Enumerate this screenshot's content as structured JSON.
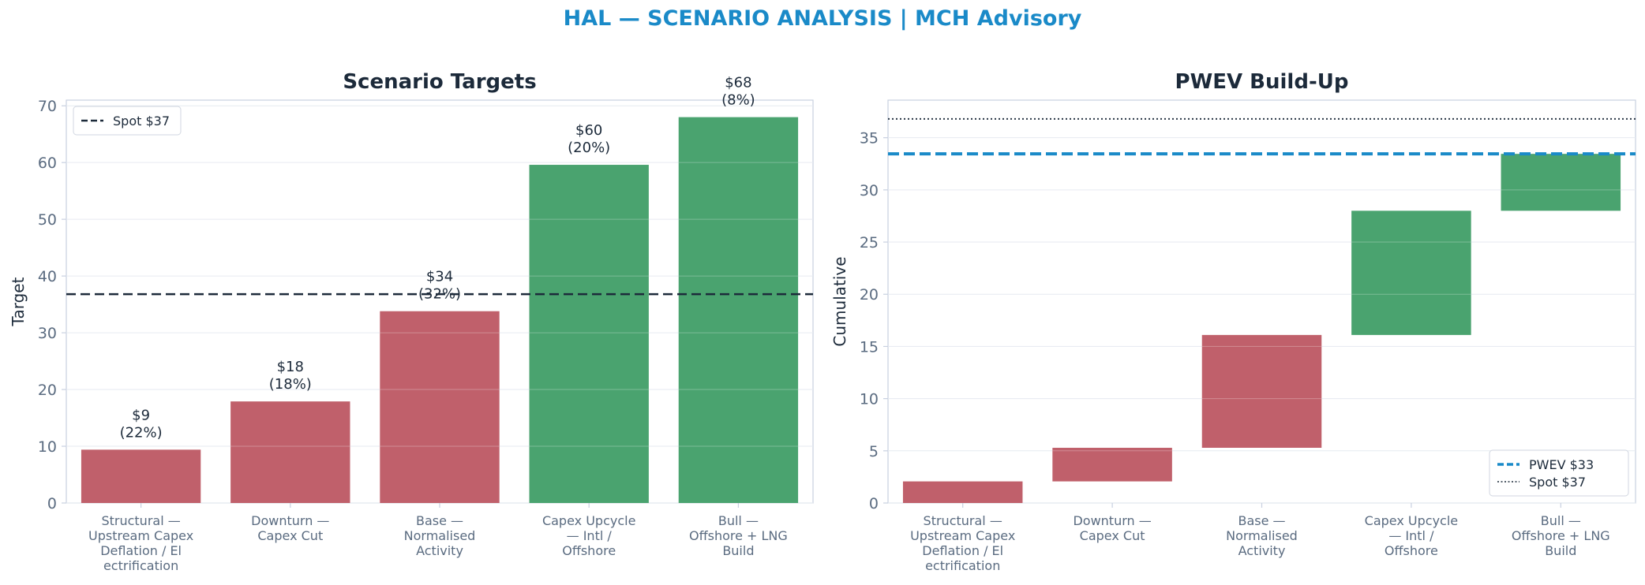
{
  "title": "HAL — SCENARIO ANALYSIS | MCH Advisory",
  "colors": {
    "bear": "#c0606b",
    "bull": "#4aa36f",
    "accent": "#1a8ac8",
    "spot": "#1c2a3a",
    "text": "#1c2a3a",
    "axis": "#c8d0e0"
  },
  "chart_data": [
    {
      "type": "bar",
      "title": "Scenario Targets",
      "xlabel": "",
      "ylabel": "Target",
      "ylim": [
        0,
        71
      ],
      "yticks": [
        0,
        10,
        20,
        30,
        40,
        50,
        60,
        70
      ],
      "categories": [
        [
          "Structural —",
          "Upstream Capex",
          "Deflation / El",
          "ectrification"
        ],
        [
          "Downturn —",
          "Capex Cut"
        ],
        [
          "Base —",
          "Normalised",
          "Activity"
        ],
        [
          "Capex Upcycle",
          "— Intl /",
          "Offshore"
        ],
        [
          "Bull —",
          "Offshore + LNG",
          "Build"
        ]
      ],
      "values": [
        9.4,
        17.9,
        33.8,
        59.6,
        68.0
      ],
      "bar_colors": [
        "bear",
        "bear",
        "bear",
        "bull",
        "bull"
      ],
      "data_labels": [
        [
          "$9",
          "(22%)"
        ],
        [
          "$18",
          "(18%)"
        ],
        [
          "$34",
          "(32%)"
        ],
        [
          "$60",
          "(20%)"
        ],
        [
          "$68",
          "(8%)"
        ]
      ],
      "reference_lines": [
        {
          "name": "Spot $37",
          "value": 36.8,
          "style": "dashed",
          "color": "spot"
        }
      ],
      "legend": {
        "position": "top-left",
        "entries": [
          "Spot $37"
        ]
      },
      "grid": true
    },
    {
      "type": "bar",
      "subtype": "waterfall",
      "title": "PWEV Build-Up",
      "xlabel": "",
      "ylabel": "Cumulative",
      "ylim": [
        0,
        38.6
      ],
      "yticks": [
        0,
        5,
        10,
        15,
        20,
        25,
        30,
        35
      ],
      "categories": [
        [
          "Structural —",
          "Upstream Capex",
          "Deflation / El",
          "ectrification"
        ],
        [
          "Downturn —",
          "Capex Cut"
        ],
        [
          "Base —",
          "Normalised",
          "Activity"
        ],
        [
          "Capex Upcycle",
          "— Intl /",
          "Offshore"
        ],
        [
          "Bull —",
          "Offshore + LNG",
          "Build"
        ]
      ],
      "bars": [
        {
          "start": 0,
          "end": 2.07
        },
        {
          "start": 2.07,
          "end": 5.29
        },
        {
          "start": 5.29,
          "end": 16.1
        },
        {
          "start": 16.1,
          "end": 28.0
        },
        {
          "start": 28.0,
          "end": 33.45
        }
      ],
      "bar_colors": [
        "bear",
        "bear",
        "bear",
        "bull",
        "bull"
      ],
      "reference_lines": [
        {
          "name": "PWEV $33",
          "value": 33.45,
          "style": "dashed",
          "color": "accent"
        },
        {
          "name": "Spot $37",
          "value": 36.8,
          "style": "dotted",
          "color": "spot"
        }
      ],
      "legend": {
        "position": "bottom-right",
        "entries": [
          "PWEV $33",
          "Spot $37"
        ]
      },
      "grid": true
    }
  ]
}
